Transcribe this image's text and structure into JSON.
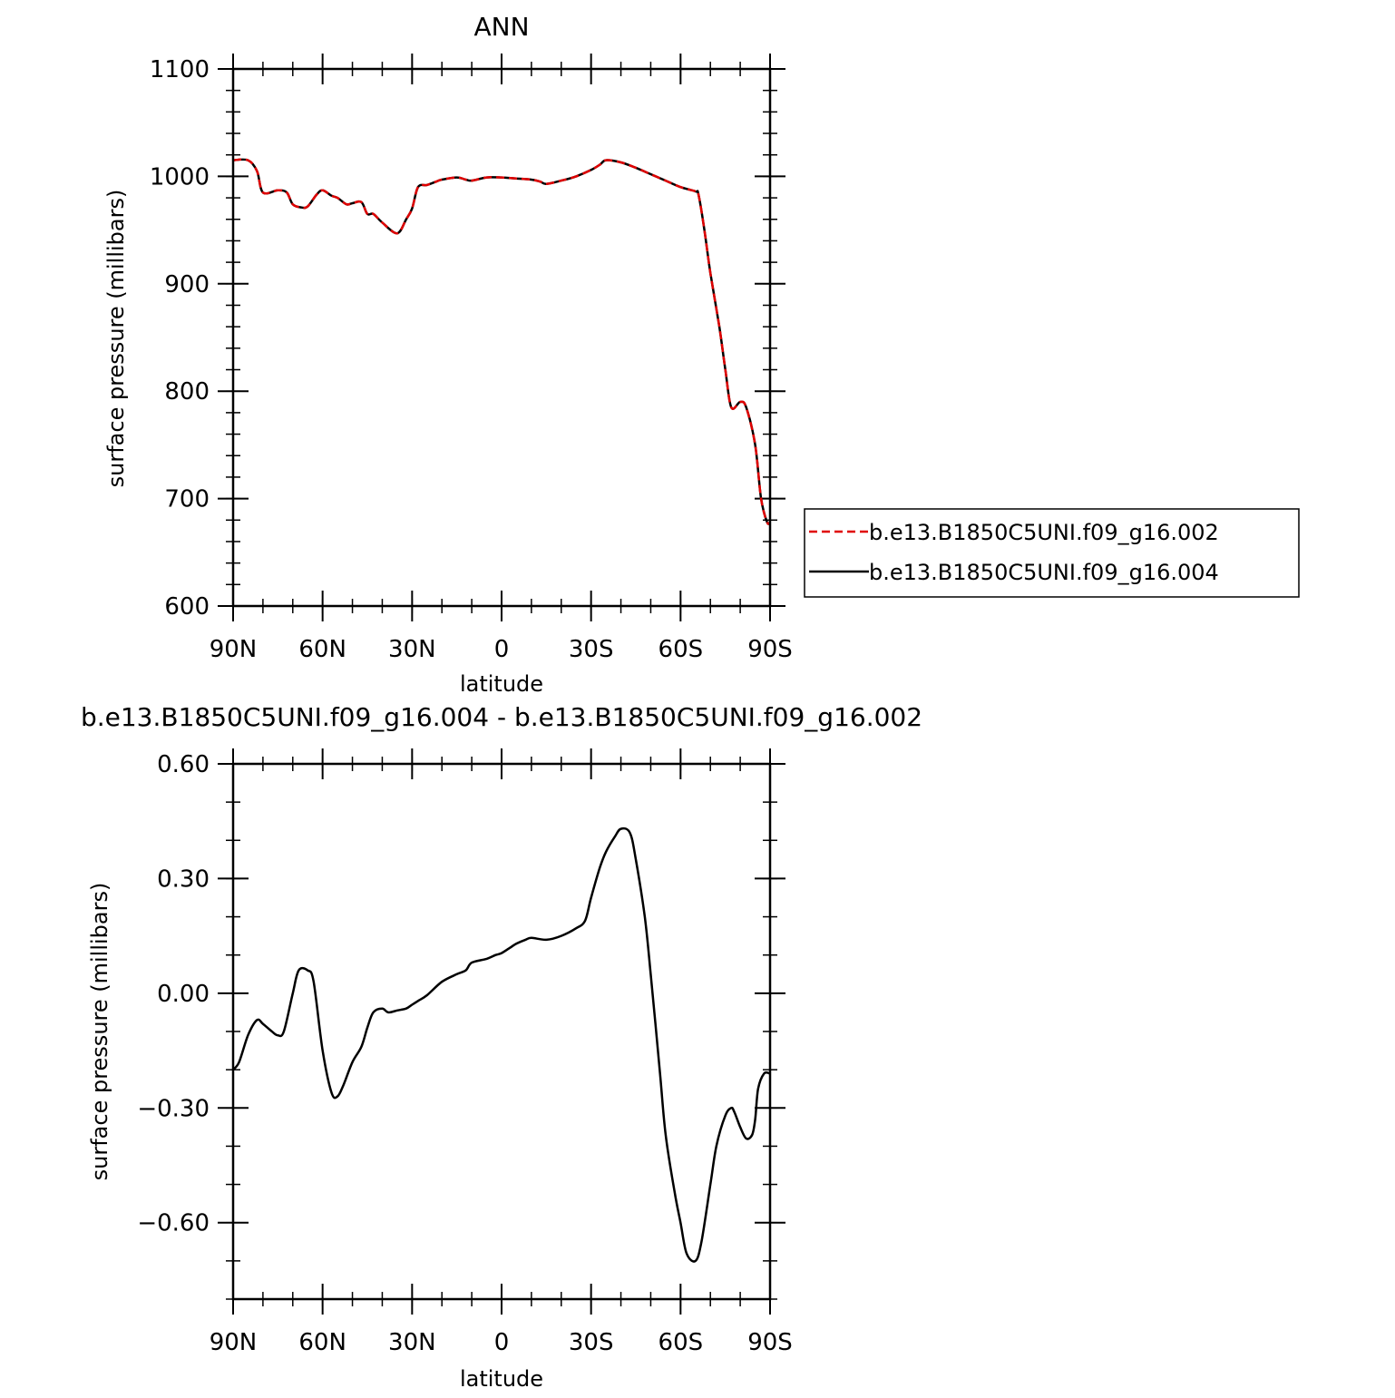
{
  "chart_data": [
    {
      "type": "line",
      "title": "ANN",
      "xlabel": "latitude",
      "ylabel": "surface pressure (millibars)",
      "xlim": [
        90,
        -90
      ],
      "ylim": [
        600,
        1100
      ],
      "yticks": [
        {
          "value": 600,
          "label": "600"
        },
        {
          "value": 700,
          "label": "700"
        },
        {
          "value": 800,
          "label": "800"
        },
        {
          "value": 900,
          "label": "900"
        },
        {
          "value": 1000,
          "label": "1000"
        },
        {
          "value": 1100,
          "label": "1100"
        }
      ],
      "xticks": [
        {
          "value": 90,
          "label": "90N"
        },
        {
          "value": 60,
          "label": "60N"
        },
        {
          "value": 30,
          "label": "30N"
        },
        {
          "value": 0,
          "label": "0"
        },
        {
          "value": -30,
          "label": "30S"
        },
        {
          "value": -60,
          "label": "60S"
        },
        {
          "value": -90,
          "label": "90S"
        }
      ],
      "legend_position": "right",
      "series": [
        {
          "name": "b.e13.B1850C5UNI.f09_g16.002",
          "color": "#e00000",
          "dash": "dashed",
          "x": [
            90,
            85,
            82,
            80,
            75,
            72,
            70,
            67,
            65,
            62,
            60,
            57,
            55,
            52,
            50,
            47,
            45,
            43,
            40,
            35,
            32,
            30,
            28,
            25,
            22,
            20,
            15,
            12,
            10,
            5,
            0,
            -5,
            -10,
            -13,
            -15,
            -20,
            -25,
            -30,
            -33,
            -35,
            -40,
            -45,
            -50,
            -55,
            -60,
            -65,
            -66,
            -68,
            -70,
            -73,
            -75,
            -77,
            -80,
            -82,
            -85,
            -87,
            -89,
            -90
          ],
          "y": [
            1015,
            1015,
            1005,
            985,
            987,
            985,
            974,
            971,
            972,
            983,
            987,
            982,
            980,
            974,
            975,
            976,
            965,
            965,
            957,
            947,
            960,
            970,
            990,
            992,
            995,
            997,
            999,
            997,
            996,
            999,
            999,
            998,
            997,
            995,
            993,
            996,
            1000,
            1006,
            1011,
            1015,
            1013,
            1008,
            1002,
            996,
            990,
            986,
            983,
            950,
            910,
            860,
            820,
            785,
            790,
            785,
            750,
            700,
            678,
            678
          ]
        },
        {
          "name": "b.e13.B1850C5UNI.f09_g16.004",
          "color": "#000000",
          "dash": "solid",
          "x": [
            90,
            85,
            82,
            80,
            75,
            72,
            70,
            67,
            65,
            62,
            60,
            57,
            55,
            52,
            50,
            47,
            45,
            43,
            40,
            35,
            32,
            30,
            28,
            25,
            22,
            20,
            15,
            12,
            10,
            5,
            0,
            -5,
            -10,
            -13,
            -15,
            -20,
            -25,
            -30,
            -33,
            -35,
            -40,
            -45,
            -50,
            -55,
            -60,
            -65,
            -66,
            -68,
            -70,
            -73,
            -75,
            -77,
            -80,
            -82,
            -85,
            -87,
            -89,
            -90
          ],
          "y": [
            1015,
            1015,
            1005,
            985,
            987,
            985,
            974,
            971,
            972,
            983,
            987,
            982,
            980,
            974,
            975,
            976,
            965,
            965,
            957,
            947,
            960,
            970,
            990,
            992,
            995,
            997,
            999,
            997,
            996,
            999,
            999,
            998,
            997,
            995,
            993,
            996,
            1000,
            1006,
            1011,
            1015,
            1013,
            1008,
            1002,
            996,
            990,
            986,
            983,
            950,
            910,
            860,
            820,
            785,
            790,
            785,
            750,
            700,
            678,
            678
          ]
        }
      ]
    },
    {
      "type": "line",
      "title": "b.e13.B1850C5UNI.f09_g16.004 - b.e13.B1850C5UNI.f09_g16.002",
      "xlabel": "latitude",
      "ylabel": "surface pressure (millibars)",
      "xlim": [
        90,
        -90
      ],
      "ylim": [
        -0.8,
        0.6
      ],
      "yticks": [
        {
          "value": -0.6,
          "label": "−0.60"
        },
        {
          "value": -0.3,
          "label": "−0.30"
        },
        {
          "value": 0.0,
          "label": "0.00"
        },
        {
          "value": 0.3,
          "label": "0.30"
        },
        {
          "value": 0.6,
          "label": "0.60"
        }
      ],
      "xticks": [
        {
          "value": 90,
          "label": "90N"
        },
        {
          "value": 60,
          "label": "60N"
        },
        {
          "value": 30,
          "label": "30N"
        },
        {
          "value": 0,
          "label": "0"
        },
        {
          "value": -30,
          "label": "30S"
        },
        {
          "value": -60,
          "label": "60S"
        },
        {
          "value": -90,
          "label": "90S"
        }
      ],
      "series": [
        {
          "color": "#000000",
          "dash": "solid",
          "x": [
            90,
            88,
            85,
            82,
            80,
            77,
            75,
            73,
            70,
            68,
            65,
            63,
            60,
            57,
            55,
            53,
            50,
            47,
            45,
            43,
            40,
            38,
            35,
            32,
            30,
            28,
            25,
            20,
            15,
            12,
            10,
            5,
            2,
            0,
            -3,
            -5,
            -8,
            -10,
            -15,
            -20,
            -25,
            -28,
            -30,
            -33,
            -35,
            -38,
            -40,
            -43,
            -45,
            -48,
            -50,
            -53,
            -55,
            -58,
            -60,
            -62,
            -65,
            -67,
            -70,
            -72,
            -75,
            -77,
            -78,
            -80,
            -82,
            -84,
            -85,
            -86,
            -88,
            -90
          ],
          "y": [
            -0.2,
            -0.18,
            -0.11,
            -0.07,
            -0.08,
            -0.1,
            -0.11,
            -0.1,
            0.0,
            0.06,
            0.06,
            0.03,
            -0.15,
            -0.26,
            -0.27,
            -0.24,
            -0.18,
            -0.14,
            -0.09,
            -0.05,
            -0.04,
            -0.05,
            -0.045,
            -0.04,
            -0.03,
            -0.02,
            -0.005,
            0.03,
            0.05,
            0.06,
            0.08,
            0.09,
            0.1,
            0.105,
            0.12,
            0.13,
            0.14,
            0.145,
            0.14,
            0.15,
            0.17,
            0.19,
            0.25,
            0.33,
            0.37,
            0.41,
            0.43,
            0.42,
            0.35,
            0.2,
            0.05,
            -0.2,
            -0.37,
            -0.52,
            -0.6,
            -0.68,
            -0.7,
            -0.65,
            -0.5,
            -0.4,
            -0.32,
            -0.3,
            -0.31,
            -0.35,
            -0.38,
            -0.37,
            -0.33,
            -0.25,
            -0.21,
            -0.21
          ]
        }
      ]
    }
  ]
}
